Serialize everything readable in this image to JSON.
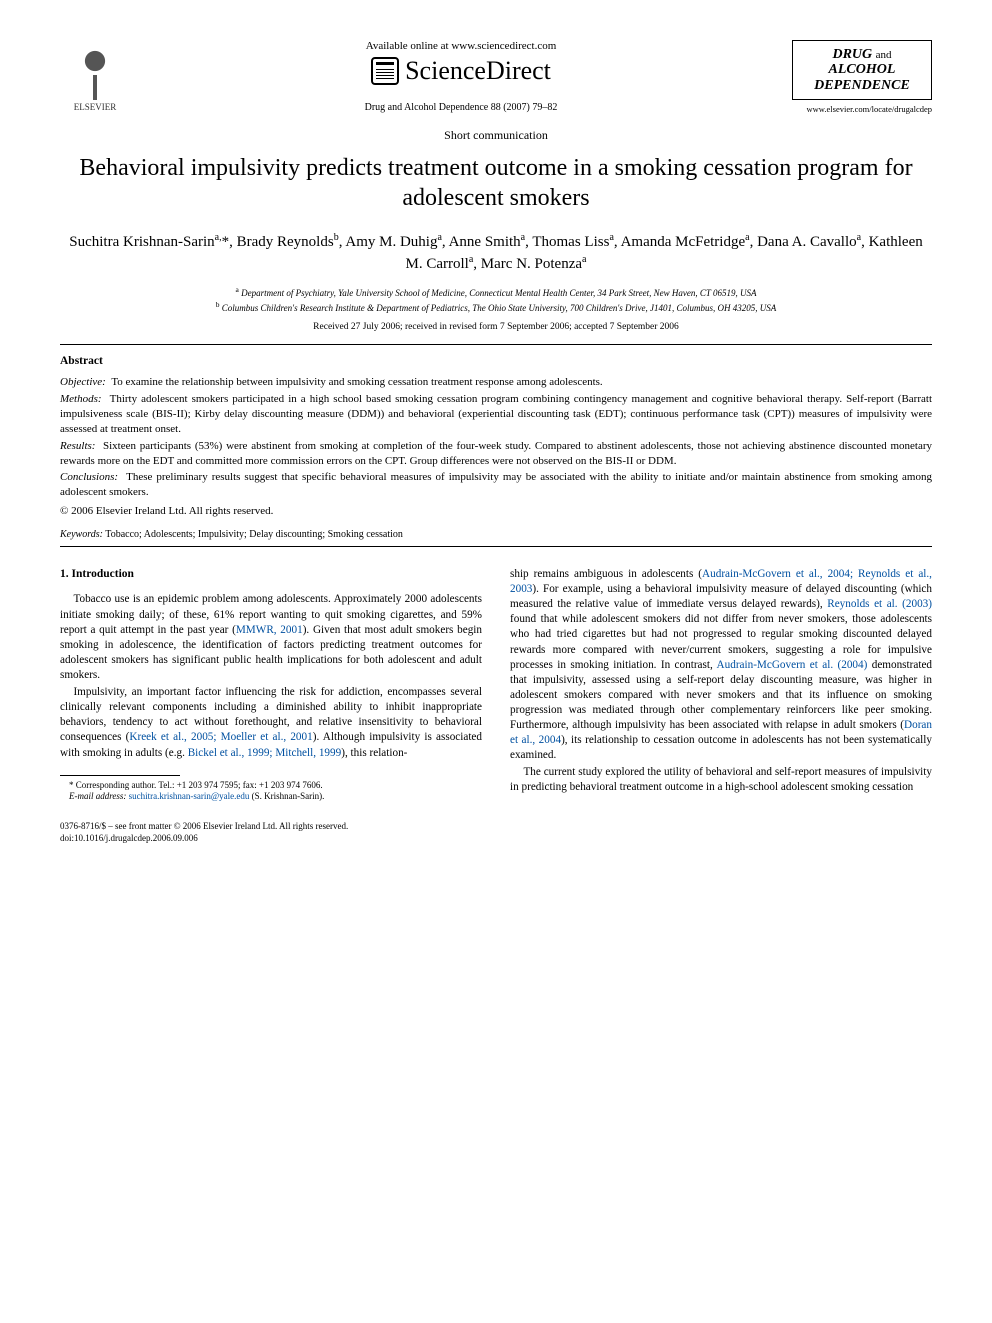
{
  "header": {
    "available_online": "Available online at www.sciencedirect.com",
    "sciencedirect": "ScienceDirect",
    "elsevier_label": "ELSEVIER",
    "journal_ref": "Drug and Alcohol Dependence 88 (2007) 79–82",
    "journal_logo_line1": "DRUG",
    "journal_logo_and": "and",
    "journal_logo_line2": "ALCOHOL",
    "journal_logo_line3": "DEPENDENCE",
    "journal_url": "www.elsevier.com/locate/drugalcdep"
  },
  "article": {
    "type": "Short communication",
    "title": "Behavioral impulsivity predicts treatment outcome in a smoking cessation program for adolescent smokers",
    "authors_html": "Suchitra Krishnan-Sarin<sup>a,</sup>*, Brady Reynolds<sup>b</sup>, Amy M. Duhig<sup>a</sup>, Anne Smith<sup>a</sup>, Thomas Liss<sup>a</sup>, Amanda McFetridge<sup>a</sup>, Dana A. Cavallo<sup>a</sup>, Kathleen M. Carroll<sup>a</sup>, Marc N. Potenza<sup>a</sup>",
    "affiliations": {
      "a": "Department of Psychiatry, Yale University School of Medicine, Connecticut Mental Health Center, 34 Park Street, New Haven, CT 06519, USA",
      "b": "Columbus Children's Research Institute & Department of Pediatrics, The Ohio State University, 700 Children's Drive, J1401, Columbus, OH 43205, USA"
    },
    "dates": "Received 27 July 2006; received in revised form 7 September 2006; accepted 7 September 2006"
  },
  "abstract": {
    "heading": "Abstract",
    "objective_label": "Objective:",
    "objective": "To examine the relationship between impulsivity and smoking cessation treatment response among adolescents.",
    "methods_label": "Methods:",
    "methods": "Thirty adolescent smokers participated in a high school based smoking cessation program combining contingency management and cognitive behavioral therapy. Self-report (Barratt impulsiveness scale (BIS-II); Kirby delay discounting measure (DDM)) and behavioral (experiential discounting task (EDT); continuous performance task (CPT)) measures of impulsivity were assessed at treatment onset.",
    "results_label": "Results:",
    "results": "Sixteen participants (53%) were abstinent from smoking at completion of the four-week study. Compared to abstinent adolescents, those not achieving abstinence discounted monetary rewards more on the EDT and committed more commission errors on the CPT. Group differences were not observed on the BIS-II or DDM.",
    "conclusions_label": "Conclusions:",
    "conclusions": "These preliminary results suggest that specific behavioral measures of impulsivity may be associated with the ability to initiate and/or maintain abstinence from smoking among adolescent smokers.",
    "copyright": "© 2006 Elsevier Ireland Ltd. All rights reserved."
  },
  "keywords": {
    "label": "Keywords:",
    "text": "Tobacco; Adolescents; Impulsivity; Delay discounting; Smoking cessation"
  },
  "body": {
    "section1_heading": "1.  Introduction",
    "p1a": "Tobacco use is an epidemic problem among adolescents. Approximately 2000 adolescents initiate smoking daily; of these, 61% report wanting to quit smoking cigarettes, and 59% report a quit attempt in the past year (",
    "p1_link1": "MMWR, 2001",
    "p1b": "). Given that most adult smokers begin smoking in adolescence, the identification of factors predicting treatment outcomes for adolescent smokers has significant public health implications for both adolescent and adult smokers.",
    "p2a": "Impulsivity, an important factor influencing the risk for addiction, encompasses several clinically relevant components including a diminished ability to inhibit inappropriate behaviors, tendency to act without forethought, and relative insensitivity to behavioral consequences (",
    "p2_link1": "Kreek et al., 2005; Moeller et al., 2001",
    "p2b": "). Although impulsivity is associated with smoking in adults (e.g. ",
    "p2_link2": "Bickel et al., 1999; Mitchell, 1999",
    "p2c": "), this relation-",
    "p2d": "ship remains ambiguous in adolescents (",
    "p2_link3": "Audrain-McGovern et al., 2004; Reynolds et al., 2003",
    "p2e": "). For example, using a behavioral impulsivity measure of delayed discounting (which measured the relative value of immediate versus delayed rewards), ",
    "p2_link4": "Reynolds et al. (2003)",
    "p2f": " found that while adolescent smokers did not differ from never smokers, those adolescents who had tried cigarettes but had not progressed to regular smoking discounted delayed rewards more compared with never/current smokers, suggesting a role for impulsive processes in smoking initiation. In contrast, ",
    "p2_link5": "Audrain-McGovern et al. (2004)",
    "p2g": " demonstrated that impulsivity, assessed using a self-report delay discounting measure, was higher in adolescent smokers compared with never smokers and that its influence on smoking progression was mediated through other complementary reinforcers like peer smoking. Furthermore, although impulsivity has been associated with relapse in adult smokers (",
    "p2_link6": "Doran et al., 2004",
    "p2h": "), its relationship to cessation outcome in adolescents has not been systematically examined.",
    "p3": "The current study explored the utility of behavioral and self-report measures of impulsivity in predicting behavioral treatment outcome in a high-school adolescent smoking cessation"
  },
  "footnote": {
    "corr": "* Corresponding author. Tel.: +1 203 974 7595; fax: +1 203 974 7606.",
    "email_label": "E-mail address:",
    "email": "suchitra.krishnan-sarin@yale.edu",
    "email_suffix": "(S. Krishnan-Sarin)."
  },
  "footer": {
    "line1": "0376-8716/$ – see front matter © 2006 Elsevier Ireland Ltd. All rights reserved.",
    "line2": "doi:10.1016/j.drugalcdep.2006.09.006"
  },
  "colors": {
    "link": "#0050a0",
    "text": "#000000",
    "background": "#ffffff"
  }
}
